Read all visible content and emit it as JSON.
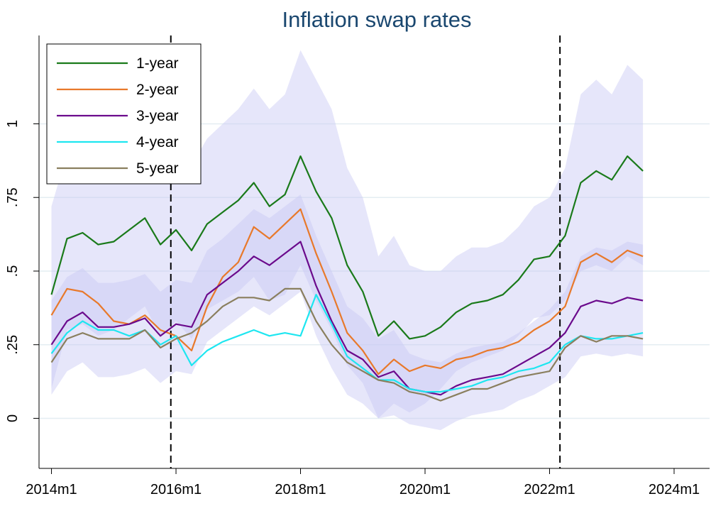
{
  "chart_data": {
    "type": "line",
    "title": "Inflation swap rates",
    "x": [
      2014,
      2014.25,
      2014.5,
      2014.75,
      2015,
      2015.25,
      2015.5,
      2015.75,
      2016,
      2016.25,
      2016.5,
      2016.75,
      2017,
      2017.25,
      2017.5,
      2017.75,
      2018,
      2018.25,
      2018.5,
      2018.75,
      2019,
      2019.25,
      2019.5,
      2019.75,
      2020,
      2020.25,
      2020.5,
      2020.75,
      2021,
      2021.25,
      2021.5,
      2021.75,
      2022,
      2022.25,
      2022.5,
      2022.75,
      2023,
      2023.25,
      2023.5
    ],
    "series": [
      {
        "name": "1-year",
        "color": "#1a7a1a",
        "values": [
          0.42,
          0.61,
          0.63,
          0.59,
          0.6,
          0.64,
          0.68,
          0.59,
          0.64,
          0.57,
          0.66,
          0.7,
          0.74,
          0.8,
          0.72,
          0.76,
          0.89,
          0.77,
          0.68,
          0.52,
          0.43,
          0.28,
          0.33,
          0.27,
          0.28,
          0.31,
          0.36,
          0.39,
          0.4,
          0.42,
          0.47,
          0.54,
          0.55,
          0.62,
          0.8,
          0.84,
          0.81,
          0.89,
          0.84
        ],
        "upper": [
          0.72,
          0.9,
          0.92,
          0.88,
          0.9,
          0.94,
          0.98,
          0.9,
          0.95,
          0.86,
          0.95,
          1.0,
          1.05,
          1.12,
          1.05,
          1.1,
          1.25,
          1.15,
          1.05,
          0.85,
          0.75,
          0.55,
          0.62,
          0.52,
          0.5,
          0.5,
          0.55,
          0.58,
          0.58,
          0.6,
          0.65,
          0.72,
          0.75,
          0.85,
          1.1,
          1.15,
          1.1,
          1.2,
          1.15
        ],
        "lower": [
          0.1,
          0.3,
          0.32,
          0.28,
          0.3,
          0.34,
          0.38,
          0.28,
          0.33,
          0.27,
          0.37,
          0.4,
          0.43,
          0.48,
          0.4,
          0.42,
          0.52,
          0.4,
          0.3,
          0.18,
          0.12,
          0.0,
          0.05,
          0.02,
          0.05,
          0.1,
          0.16,
          0.19,
          0.21,
          0.23,
          0.28,
          0.34,
          0.35,
          0.4,
          0.5,
          0.52,
          0.5,
          0.55,
          0.52
        ]
      },
      {
        "name": "2-year",
        "color": "#e8792b",
        "values": [
          0.35,
          0.44,
          0.43,
          0.39,
          0.33,
          0.32,
          0.35,
          0.3,
          0.28,
          0.23,
          0.38,
          0.48,
          0.53,
          0.65,
          0.61,
          0.66,
          0.71,
          0.56,
          0.43,
          0.29,
          0.23,
          0.15,
          0.2,
          0.16,
          0.18,
          0.17,
          0.2,
          0.21,
          0.23,
          0.24,
          0.26,
          0.3,
          0.33,
          0.38,
          0.53,
          0.56,
          0.53,
          0.57,
          0.55
        ]
      },
      {
        "name": "3-year",
        "color": "#6b0a8c",
        "values": [
          0.25,
          0.33,
          0.36,
          0.31,
          0.31,
          0.32,
          0.34,
          0.28,
          0.32,
          0.31,
          0.42,
          0.46,
          0.5,
          0.55,
          0.52,
          0.56,
          0.6,
          0.45,
          0.33,
          0.23,
          0.2,
          0.14,
          0.16,
          0.1,
          0.09,
          0.08,
          0.11,
          0.13,
          0.14,
          0.15,
          0.18,
          0.21,
          0.24,
          0.29,
          0.38,
          0.4,
          0.39,
          0.41,
          0.4
        ],
        "upper": [
          0.4,
          0.48,
          0.51,
          0.46,
          0.46,
          0.47,
          0.49,
          0.43,
          0.47,
          0.46,
          0.57,
          0.61,
          0.66,
          0.71,
          0.68,
          0.72,
          0.76,
          0.62,
          0.5,
          0.38,
          0.34,
          0.27,
          0.3,
          0.22,
          0.2,
          0.19,
          0.22,
          0.24,
          0.25,
          0.26,
          0.29,
          0.33,
          0.37,
          0.43,
          0.55,
          0.58,
          0.57,
          0.6,
          0.59
        ],
        "lower": [
          0.08,
          0.16,
          0.19,
          0.14,
          0.14,
          0.15,
          0.17,
          0.12,
          0.16,
          0.15,
          0.26,
          0.3,
          0.34,
          0.38,
          0.35,
          0.39,
          0.43,
          0.28,
          0.17,
          0.08,
          0.05,
          0.0,
          0.01,
          -0.02,
          -0.03,
          -0.04,
          -0.01,
          0.01,
          0.02,
          0.03,
          0.06,
          0.08,
          0.11,
          0.14,
          0.21,
          0.22,
          0.21,
          0.22,
          0.21
        ]
      },
      {
        "name": "4-year",
        "color": "#1ee6f0",
        "values": [
          0.22,
          0.29,
          0.33,
          0.3,
          0.3,
          0.28,
          0.3,
          0.25,
          0.28,
          0.18,
          0.23,
          0.26,
          0.28,
          0.3,
          0.28,
          0.29,
          0.28,
          0.42,
          0.32,
          0.21,
          0.17,
          0.13,
          0.13,
          0.1,
          0.09,
          0.09,
          0.1,
          0.11,
          0.13,
          0.14,
          0.16,
          0.17,
          0.19,
          0.25,
          0.28,
          0.27,
          0.27,
          0.28,
          0.29
        ]
      },
      {
        "name": "5-year",
        "color": "#8a7f5e",
        "values": [
          0.19,
          0.27,
          0.29,
          0.27,
          0.27,
          0.27,
          0.3,
          0.24,
          0.27,
          0.29,
          0.33,
          0.38,
          0.41,
          0.41,
          0.4,
          0.44,
          0.44,
          0.33,
          0.25,
          0.19,
          0.16,
          0.13,
          0.12,
          0.09,
          0.08,
          0.06,
          0.08,
          0.1,
          0.1,
          0.12,
          0.14,
          0.15,
          0.16,
          0.24,
          0.28,
          0.26,
          0.28,
          0.28,
          0.27
        ]
      }
    ],
    "band_color": "#c8c8f5",
    "xlim": [
      2013.8,
      2024.57
    ],
    "xticks": [
      {
        "value": 2014,
        "label": "2014m1"
      },
      {
        "value": 2016,
        "label": "2016m1"
      },
      {
        "value": 2018,
        "label": "2018m1"
      },
      {
        "value": 2020,
        "label": "2020m1"
      },
      {
        "value": 2022,
        "label": "2022m1"
      },
      {
        "value": 2024,
        "label": "2024m1"
      }
    ],
    "ylim": [
      -0.17,
      1.3
    ],
    "yticks": [
      0,
      {
        "value": 0.25,
        "label": ".25"
      },
      {
        "value": 0.5,
        "label": ".5"
      },
      {
        "value": 0.75,
        "label": ".75"
      },
      1
    ],
    "vlines": [
      2015.917,
      2022.167
    ],
    "grid": true,
    "legend": "top-left"
  }
}
